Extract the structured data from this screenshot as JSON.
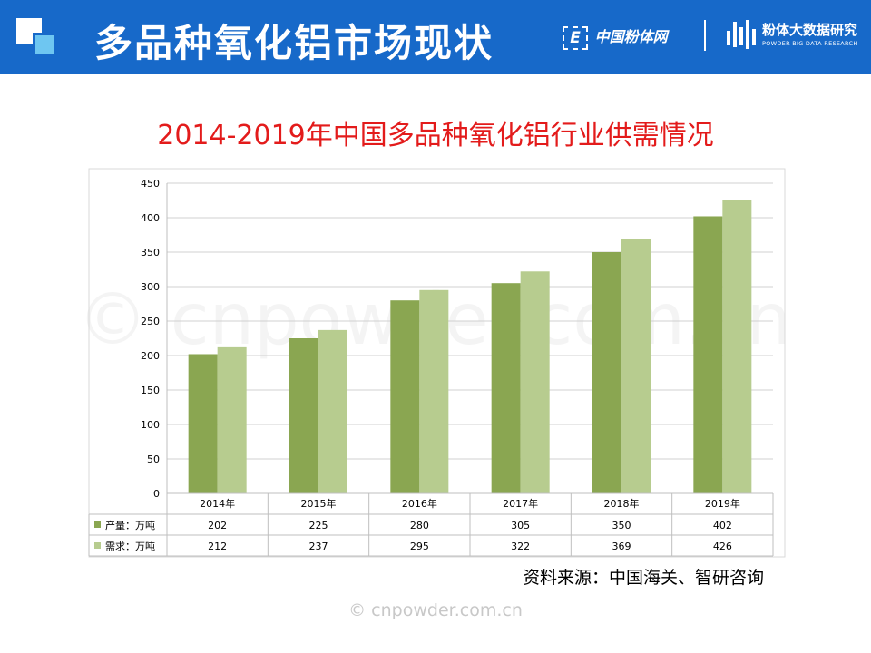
{
  "header": {
    "title": "多品种氧化铝市场现状",
    "brand1_mark": "E",
    "brand1_name": "中国粉体网",
    "brand2_name": "粉体大数据研究",
    "brand2_sub": "POWDER BIG DATA RESEARCH"
  },
  "colors": {
    "header_bg": "#1769c9",
    "production": "#8aa651",
    "demand": "#b7cc8f",
    "title": "#e31b1b"
  },
  "chart_data": {
    "type": "bar",
    "title": "2014-2019年中国多品种氧化铝行业供需情况",
    "categories": [
      "2014年",
      "2015年",
      "2016年",
      "2017年",
      "2018年",
      "2019年"
    ],
    "series": [
      {
        "name": "产量：万吨",
        "values": [
          202,
          225,
          280,
          305,
          350,
          402
        ]
      },
      {
        "name": "需求：万吨",
        "values": [
          212,
          237,
          295,
          322,
          369,
          426
        ]
      }
    ],
    "ylim": [
      0,
      450
    ],
    "yticks": [
      0,
      50,
      100,
      150,
      200,
      250,
      300,
      350,
      400,
      450
    ],
    "grid": true,
    "data_table": true
  },
  "source": "资料来源：中国海关、智研咨询",
  "watermark": "© cnpowder.com.cn"
}
